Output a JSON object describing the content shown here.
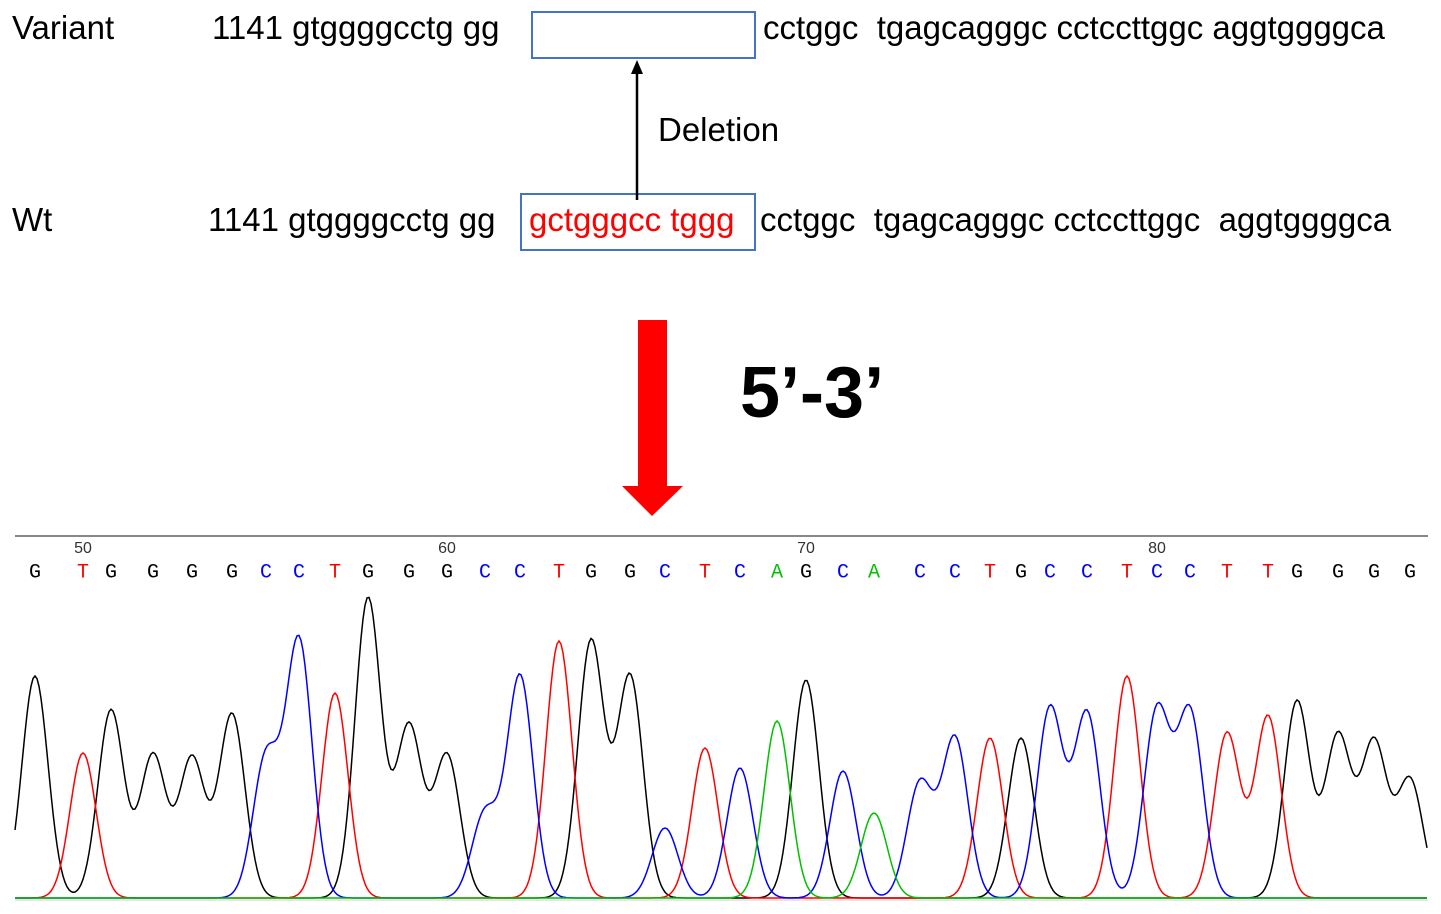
{
  "variant": {
    "label": "Variant",
    "prefix": "1141 gtggggcctg gg",
    "suffix": "cctggc  tgagcagggc cctccttggc aggtggggca"
  },
  "annotation": "Deletion",
  "wt": {
    "label": "Wt",
    "prefix": "1141 gtggggcctg gg",
    "deleted": "gctgggcc tggg",
    "suffix": "cctggc  tgagcagggc cctccttggc  aggtggggca"
  },
  "direction": "5’-3’",
  "chromatogram": {
    "ruler": [
      "50",
      "60",
      "70",
      "80"
    ],
    "bases": [
      "G",
      "T",
      "G",
      "G",
      "G",
      "G",
      "C",
      "C",
      "T",
      "G",
      "G",
      "G",
      "C",
      "C",
      "T",
      "G",
      "G",
      "C",
      "T",
      "C",
      "A",
      "G",
      "C",
      "A",
      "C",
      "C",
      "T",
      "G",
      "C",
      "C",
      "T",
      "C",
      "C",
      "T",
      "T",
      "G",
      "G",
      "G",
      "G"
    ],
    "base_colors": {
      "G": "#000000",
      "T": "#ff0000",
      "C": "#0000ff",
      "A": "#00c000"
    }
  }
}
